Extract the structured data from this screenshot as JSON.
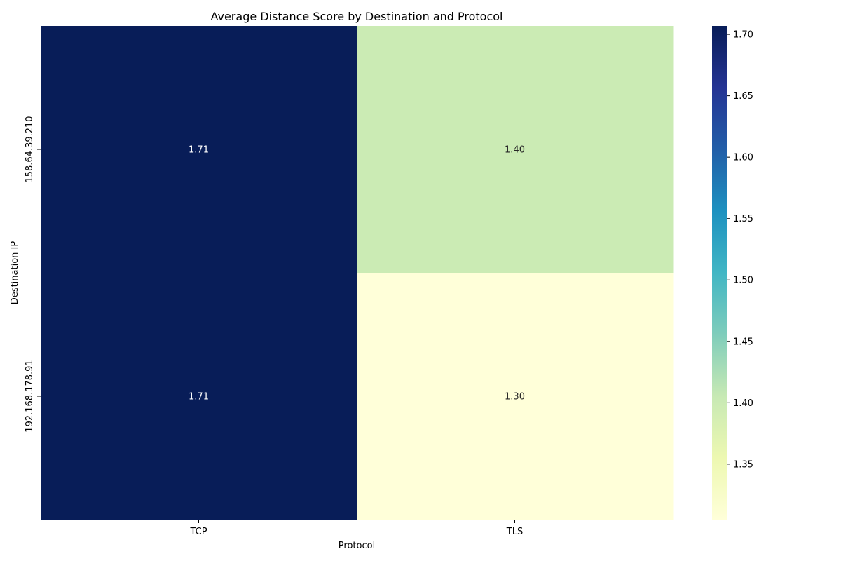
{
  "chart_data": {
    "type": "heatmap",
    "title": "Average Distance Score by Destination and Protocol",
    "xlabel": "Protocol",
    "ylabel": "Destination IP",
    "x_categories": [
      "TCP",
      "TLS"
    ],
    "y_categories": [
      "158.64.39.210",
      "192.168.178.91"
    ],
    "values": [
      [
        1.7069,
        1.4
      ],
      [
        1.7069,
        1.3048
      ]
    ],
    "cell_labels": [
      [
        "1.71",
        "1.40"
      ],
      [
        "1.71",
        "1.30"
      ]
    ],
    "colormap": "YlGnBu",
    "colorbar": {
      "range": [
        1.3048,
        1.7069
      ],
      "ticks": [
        1.35,
        1.4,
        1.45,
        1.5,
        1.55,
        1.6,
        1.65,
        1.7
      ],
      "tick_labels": [
        "1.35",
        "1.40",
        "1.45",
        "1.50",
        "1.55",
        "1.60",
        "1.65",
        "1.70"
      ]
    },
    "colormap_stops": [
      "#ffffd9",
      "#edf8b1",
      "#c7e9b4",
      "#7fcdbb",
      "#41b6c4",
      "#1d91c0",
      "#225ea8",
      "#253494",
      "#081d58"
    ]
  }
}
